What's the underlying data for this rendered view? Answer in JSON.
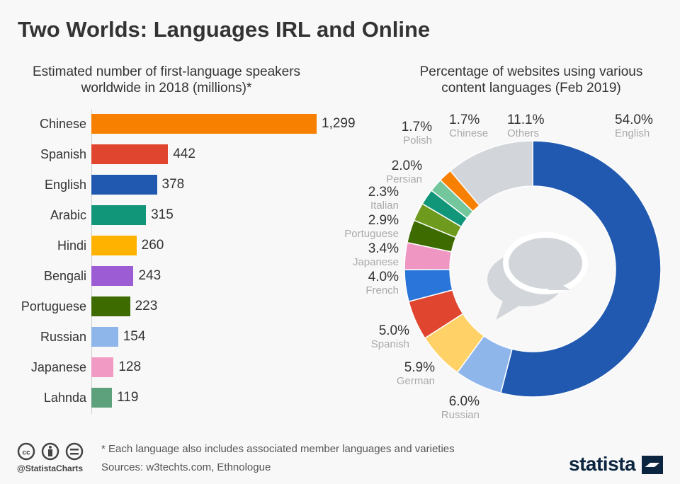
{
  "title": "Two Worlds: Languages IRL and Online",
  "chart_data": [
    {
      "type": "bar",
      "orientation": "horizontal",
      "title": "Estimated number of first-language speakers worldwide in 2018 (millions)*",
      "categories": [
        "Chinese",
        "Spanish",
        "English",
        "Arabic",
        "Hindi",
        "Bengali",
        "Portuguese",
        "Russian",
        "Japanese",
        "Lahnda"
      ],
      "values": [
        1299,
        442,
        378,
        315,
        260,
        243,
        223,
        154,
        128,
        119
      ],
      "value_labels": [
        "1,299",
        "442",
        "378",
        "315",
        "260",
        "243",
        "223",
        "154",
        "128",
        "119"
      ],
      "colors": [
        "#f78000",
        "#e0452f",
        "#2159b0",
        "#12967a",
        "#ffb300",
        "#9c5cd4",
        "#3d6b00",
        "#8fb6eb",
        "#f09ac4",
        "#5da07c"
      ]
    },
    {
      "type": "pie",
      "donut": true,
      "title": "Percentage of websites using various content languages (Feb 2019)",
      "categories": [
        "English",
        "Russian",
        "German",
        "Spanish",
        "French",
        "Japanese",
        "Portuguese",
        "Italian",
        "Persian",
        "Polish",
        "Chinese",
        "Others"
      ],
      "values": [
        54.0,
        6.0,
        5.9,
        5.0,
        4.0,
        3.4,
        2.9,
        2.3,
        2.0,
        1.7,
        1.7,
        11.1
      ],
      "value_labels": [
        "54.0%",
        "6.0%",
        "5.9%",
        "5.0%",
        "4.0%",
        "3.4%",
        "2.9%",
        "2.3%",
        "2.0%",
        "1.7%",
        "1.7%",
        "11.1%"
      ],
      "colors": [
        "#2159b0",
        "#8fb6eb",
        "#ffd166",
        "#e0452f",
        "#2a75d9",
        "#ef96c3",
        "#3d6b00",
        "#6e9a1e",
        "#12967a",
        "#74c69d",
        "#f78000",
        "#d2d5da"
      ]
    }
  ],
  "footer": {
    "note": "* Each language also includes associated member languages and varieties",
    "sources": "Sources: w3techts.com, Ethnologue",
    "handle": "@StatistaCharts",
    "brand": "statista"
  },
  "icons": [
    "creative-commons-icon",
    "attribution-icon",
    "no-derivatives-icon",
    "chat-bubbles-icon"
  ]
}
